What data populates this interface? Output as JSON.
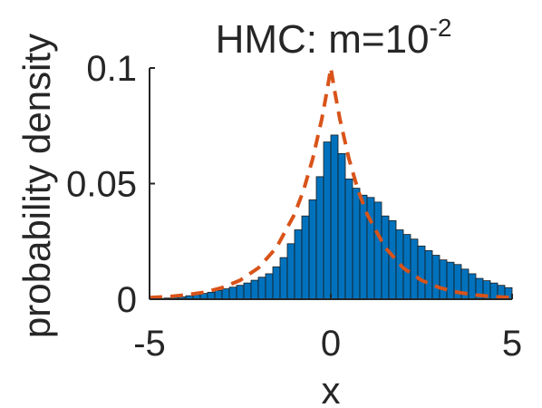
{
  "chart_data": {
    "type": "bar",
    "title_main": "HMC: m=10",
    "title_exponent": "-2",
    "xlabel": "x",
    "ylabel": "probability density",
    "xlim": [
      -5,
      5
    ],
    "ylim": [
      0,
      0.1
    ],
    "x_ticks": [
      -5,
      0,
      5
    ],
    "x_tick_labels": [
      "-5",
      "0",
      "5"
    ],
    "y_ticks": [
      0,
      0.05,
      0.1
    ],
    "y_tick_labels": [
      "0",
      "0.05",
      "0.1"
    ],
    "grid": false,
    "legend": "none",
    "bin_width": 0.2,
    "bin_centers": [
      -4.9,
      -4.7,
      -4.5,
      -4.3,
      -4.1,
      -3.9,
      -3.7,
      -3.5,
      -3.3,
      -3.1,
      -2.9,
      -2.7,
      -2.5,
      -2.3,
      -2.1,
      -1.9,
      -1.7,
      -1.5,
      -1.3,
      -1.1,
      -0.9,
      -0.7,
      -0.5,
      -0.3,
      -0.1,
      0.1,
      0.3,
      0.5,
      0.7,
      0.9,
      1.1,
      1.3,
      1.5,
      1.7,
      1.9,
      2.1,
      2.3,
      2.5,
      2.7,
      2.9,
      3.1,
      3.3,
      3.5,
      3.7,
      3.9,
      4.1,
      4.3,
      4.5,
      4.7,
      4.9
    ],
    "series": [
      {
        "kind": "histogram",
        "values": [
          0.0002,
          0.0003,
          0.0005,
          0.0008,
          0.001,
          0.0015,
          0.002,
          0.0025,
          0.003,
          0.0038,
          0.0045,
          0.0052,
          0.006,
          0.007,
          0.0082,
          0.0095,
          0.011,
          0.014,
          0.018,
          0.024,
          0.03,
          0.036,
          0.043,
          0.053,
          0.068,
          0.071,
          0.063,
          0.052,
          0.048,
          0.045,
          0.044,
          0.042,
          0.036,
          0.034,
          0.03,
          0.028,
          0.026,
          0.023,
          0.021,
          0.019,
          0.017,
          0.016,
          0.015,
          0.013,
          0.011,
          0.009,
          0.008,
          0.007,
          0.006,
          0.005
        ],
        "color": "#0072BD"
      },
      {
        "kind": "density-line",
        "style": "dashed",
        "color": "#D95319",
        "x": [
          -5,
          -4.5,
          -4,
          -3.5,
          -3,
          -2.5,
          -2,
          -1.5,
          -1,
          -0.75,
          -0.5,
          -0.25,
          -0.1,
          0,
          0.1,
          0.25,
          0.5,
          0.75,
          1,
          1.5,
          2,
          2.5,
          3,
          3.5,
          4,
          4.5,
          5
        ],
        "y": [
          0.0007,
          0.0011,
          0.0018,
          0.003,
          0.005,
          0.0082,
          0.0135,
          0.0223,
          0.0368,
          0.0472,
          0.0607,
          0.0779,
          0.0905,
          0.1,
          0.0905,
          0.0779,
          0.0607,
          0.0472,
          0.0368,
          0.0223,
          0.0135,
          0.0082,
          0.005,
          0.003,
          0.0018,
          0.0011,
          0.0007
        ]
      }
    ]
  },
  "colors": {
    "bar_fill": "#0072BD",
    "bar_edge": "#1a1a1a",
    "density_line": "#D95319",
    "axis": "#262626"
  }
}
